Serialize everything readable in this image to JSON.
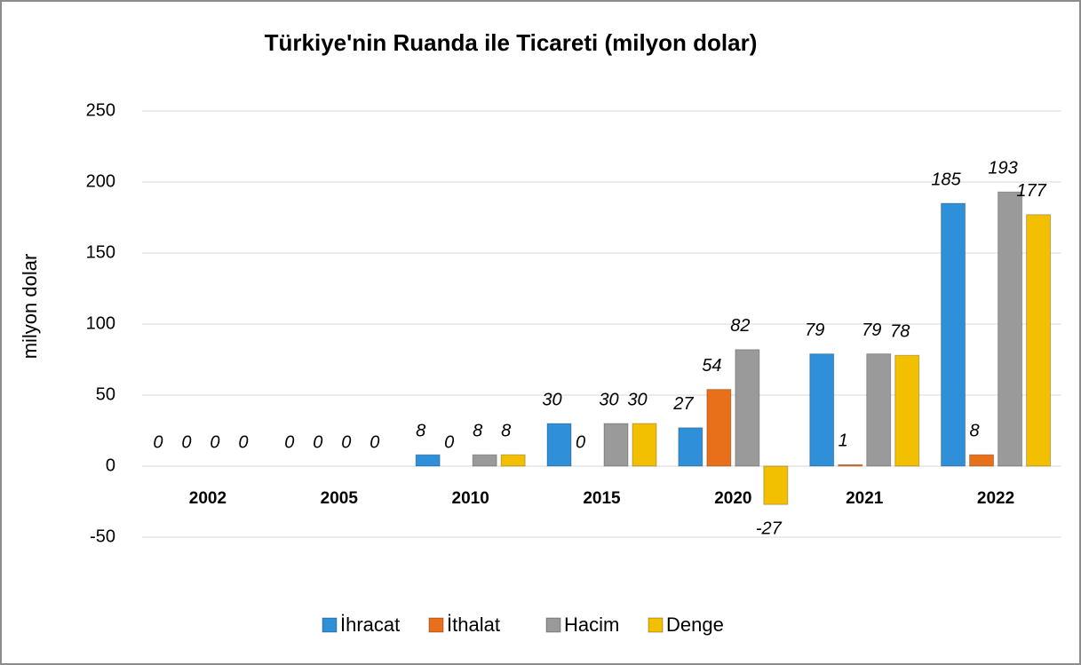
{
  "chart_data": {
    "type": "bar",
    "title": "Türkiye'nin Ruanda ile Ticareti (milyon dolar)",
    "y_label": "milyon dolar",
    "categories": [
      "2002",
      "2005",
      "2010",
      "2015",
      "2020",
      "2021",
      "2022"
    ],
    "series": [
      {
        "name": "İhracat",
        "color": "#2f8fd8",
        "values": [
          0,
          0,
          8,
          30,
          27,
          79,
          185
        ]
      },
      {
        "name": "İthalat",
        "color": "#e8701a",
        "values": [
          0,
          0,
          0,
          0,
          54,
          1,
          8
        ]
      },
      {
        "name": "Hacim",
        "color": "#9a9a9a",
        "values": [
          0,
          0,
          8,
          30,
          82,
          79,
          193
        ]
      },
      {
        "name": "Denge",
        "color": "#f2c000",
        "values": [
          0,
          0,
          8,
          30,
          -27,
          78,
          177
        ]
      }
    ],
    "ylim": [
      -50,
      250
    ],
    "yticks": [
      -50,
      0,
      50,
      100,
      150,
      200,
      250
    ],
    "grid": true,
    "legend": "bottom"
  }
}
